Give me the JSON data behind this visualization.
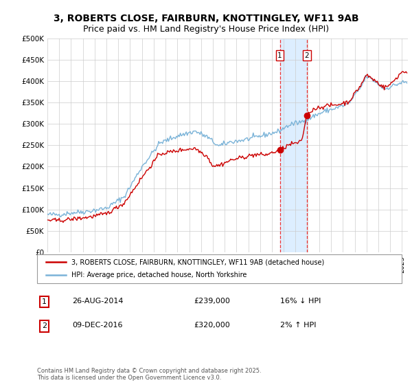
{
  "title1": "3, ROBERTS CLOSE, FAIRBURN, KNOTTINGLEY, WF11 9AB",
  "title2": "Price paid vs. HM Land Registry's House Price Index (HPI)",
  "ylabel_ticks": [
    "£0",
    "£50K",
    "£100K",
    "£150K",
    "£200K",
    "£250K",
    "£300K",
    "£350K",
    "£400K",
    "£450K",
    "£500K"
  ],
  "ylim": [
    0,
    500000
  ],
  "xlim_start": 1995.0,
  "xlim_end": 2025.5,
  "transaction1_date": 2014.67,
  "transaction1_price": 239000,
  "transaction2_date": 2016.94,
  "transaction2_price": 320000,
  "legend_house": "3, ROBERTS CLOSE, FAIRBURN, KNOTTINGLEY, WF11 9AB (detached house)",
  "legend_hpi": "HPI: Average price, detached house, North Yorkshire",
  "ann1_date": "26-AUG-2014",
  "ann1_price": "£239,000",
  "ann1_note": "16% ↓ HPI",
  "ann2_date": "09-DEC-2016",
  "ann2_price": "£320,000",
  "ann2_note": "2% ↑ HPI",
  "footer": "Contains HM Land Registry data © Crown copyright and database right 2025.\nThis data is licensed under the Open Government Licence v3.0.",
  "hpi_color": "#7ab3d8",
  "house_color": "#cc0000",
  "marker_color": "#cc0000",
  "shade_color": "#ddeeff",
  "vline_color": "#ee3333",
  "grid_color": "#cccccc",
  "bg_color": "#ffffff",
  "title_fontsize": 10,
  "subtitle_fontsize": 9
}
